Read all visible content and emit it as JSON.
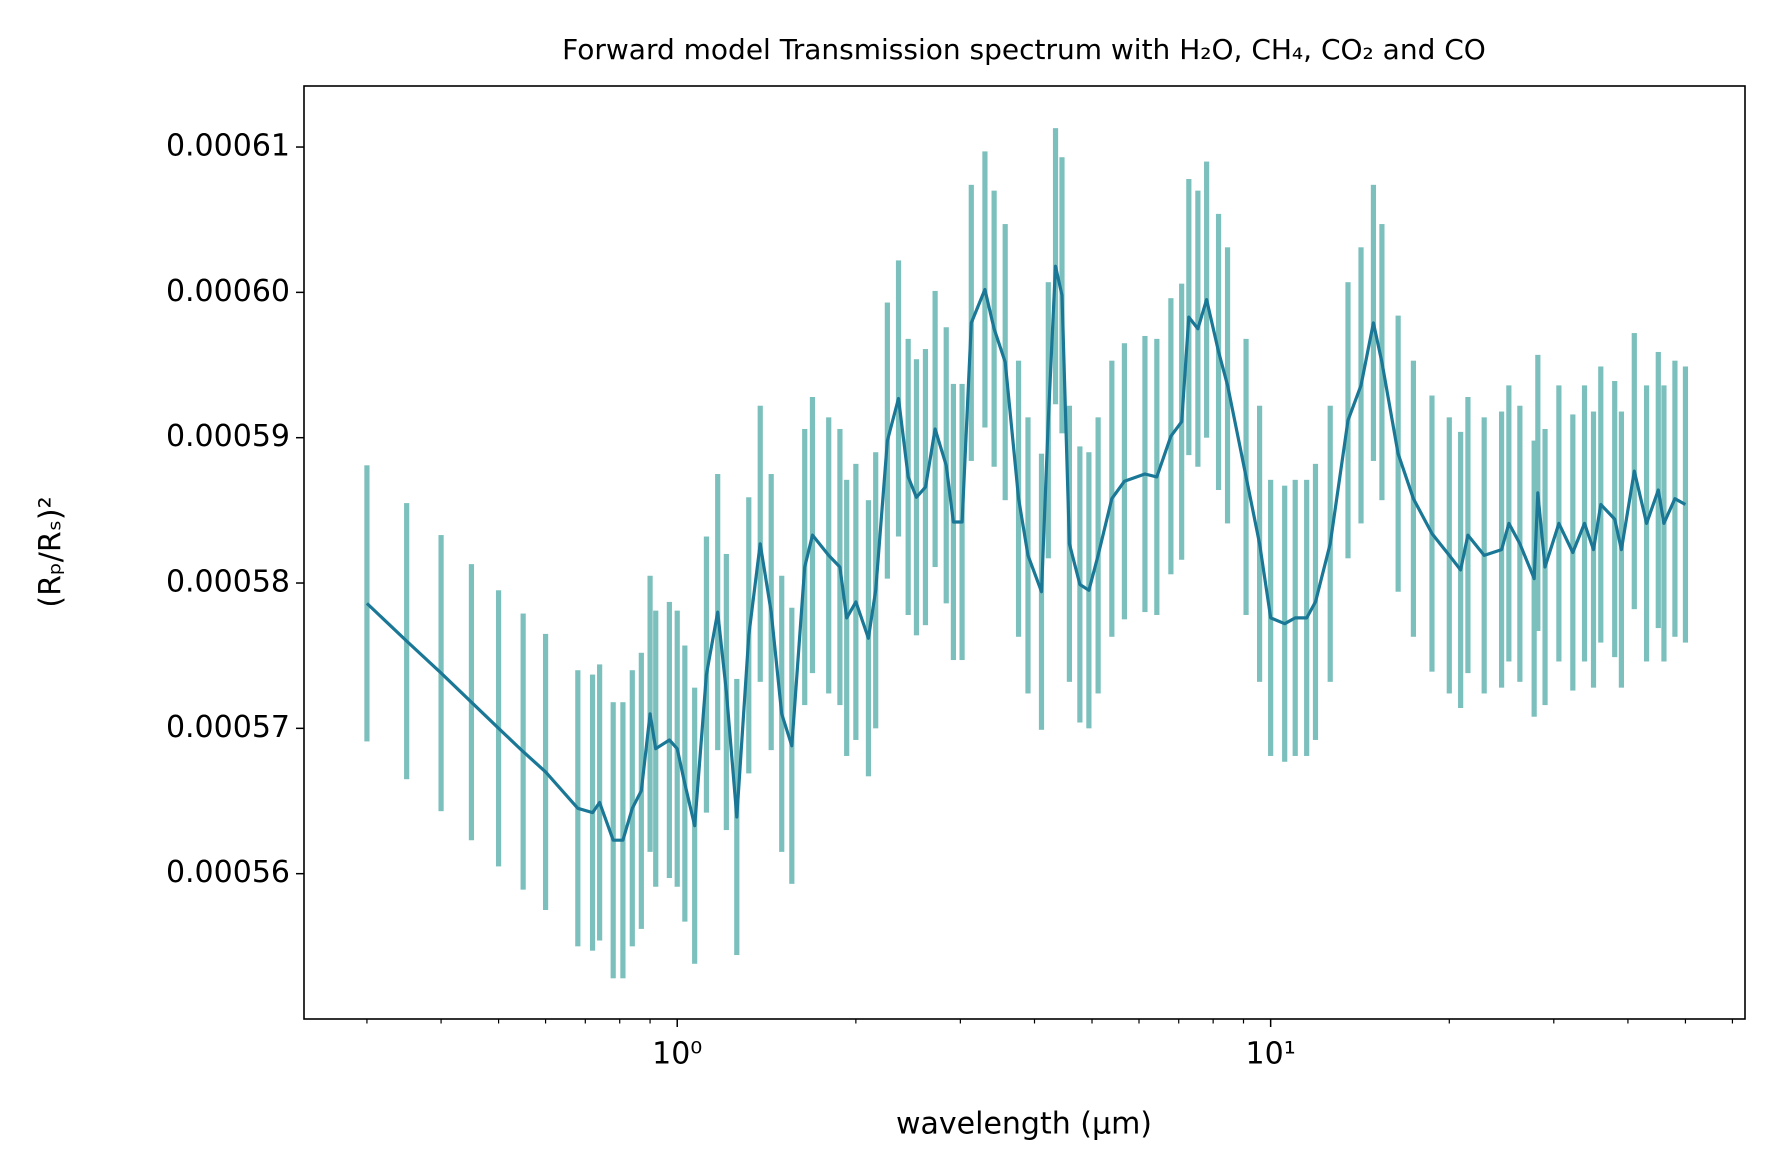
{
  "chart_data": {
    "type": "errorbar_line",
    "title": "Forward model Transmission spectrum with H₂O, CH₄, CO₂ and CO",
    "x_label": "wavelength (µm)",
    "y_label": "(Rₚ/Rₛ)²",
    "log_x": true,
    "xlim": [
      0.235,
      63
    ],
    "ylim": [
      0.00055,
      0.0006142
    ],
    "xticks": [
      {
        "value": 1,
        "label": "10⁰"
      },
      {
        "value": 10,
        "label": "10¹"
      }
    ],
    "xminorticks": [
      0.3,
      0.4,
      0.5,
      0.6,
      0.7,
      0.8,
      0.9,
      2,
      3,
      4,
      5,
      6,
      7,
      8,
      9,
      20,
      30,
      40,
      50,
      60
    ],
    "yticks": [
      0.00056,
      0.00057,
      0.00058,
      0.00059,
      {
        "value": 0.0006,
        "label": "0.00060"
      },
      0.00061
    ],
    "series": [
      {
        "color": "#1a7896",
        "error_color": "#7cc0bd",
        "error": 9.5e-06,
        "x": [
          0.3,
          0.35,
          0.4,
          0.45,
          0.5,
          0.55,
          0.6,
          0.68,
          0.72,
          0.74,
          0.78,
          0.81,
          0.84,
          0.87,
          0.9,
          0.92,
          0.97,
          1.0,
          1.03,
          1.07,
          1.12,
          1.17,
          1.21,
          1.26,
          1.32,
          1.38,
          1.44,
          1.5,
          1.56,
          1.64,
          1.69,
          1.8,
          1.88,
          1.93,
          2.0,
          2.1,
          2.16,
          2.26,
          2.36,
          2.45,
          2.53,
          2.62,
          2.72,
          2.84,
          2.92,
          3.02,
          3.13,
          3.3,
          3.42,
          3.57,
          3.76,
          3.9,
          4.11,
          4.22,
          4.34,
          4.45,
          4.58,
          4.77,
          4.94,
          5.12,
          5.4,
          5.67,
          6.14,
          6.43,
          6.79,
          7.08,
          7.28,
          7.54,
          7.8,
          8.17,
          8.46,
          9.09,
          9.58,
          10.0,
          10.56,
          11.0,
          11.5,
          11.9,
          12.6,
          13.5,
          14.2,
          14.9,
          15.4,
          16.4,
          17.4,
          18.7,
          20.0,
          20.9,
          21.5,
          22.9,
          24.5,
          25.2,
          26.3,
          27.8,
          28.2,
          29.0,
          30.6,
          32.3,
          33.8,
          35.0,
          36.0,
          38.0,
          39.0,
          41.0,
          43.0,
          45.0,
          46.0,
          48.0,
          50.0
        ],
        "values": [
          0.0005786,
          0.000576,
          0.0005738,
          0.0005718,
          0.00057,
          0.0005684,
          0.000567,
          0.0005645,
          0.0005642,
          0.0005649,
          0.0005623,
          0.0005623,
          0.0005645,
          0.0005657,
          0.000571,
          0.0005686,
          0.0005692,
          0.0005686,
          0.0005662,
          0.0005633,
          0.0005737,
          0.000578,
          0.0005725,
          0.0005639,
          0.0005764,
          0.0005827,
          0.000578,
          0.000571,
          0.0005688,
          0.0005811,
          0.0005833,
          0.0005819,
          0.0005811,
          0.0005776,
          0.0005787,
          0.0005762,
          0.0005795,
          0.0005898,
          0.0005927,
          0.0005873,
          0.0005859,
          0.0005866,
          0.0005906,
          0.0005881,
          0.0005842,
          0.0005842,
          0.0005979,
          0.0006002,
          0.0005975,
          0.0005952,
          0.0005858,
          0.0005819,
          0.0005794,
          0.0005912,
          0.0006018,
          0.0005998,
          0.0005827,
          0.0005799,
          0.0005795,
          0.0005819,
          0.0005858,
          0.000587,
          0.0005875,
          0.0005873,
          0.0005901,
          0.0005911,
          0.0005983,
          0.0005975,
          0.0005995,
          0.0005959,
          0.0005936,
          0.0005873,
          0.0005827,
          0.0005776,
          0.0005772,
          0.0005776,
          0.0005776,
          0.0005787,
          0.0005827,
          0.0005912,
          0.0005936,
          0.0005979,
          0.0005952,
          0.0005889,
          0.0005858,
          0.0005834,
          0.0005819,
          0.0005809,
          0.0005833,
          0.0005819,
          0.0005823,
          0.0005841,
          0.0005827,
          0.0005803,
          0.0005862,
          0.0005811,
          0.0005841,
          0.0005821,
          0.0005841,
          0.0005823,
          0.0005854,
          0.0005844,
          0.0005823,
          0.0005877,
          0.0005841,
          0.0005864,
          0.0005841,
          0.0005858,
          0.0005854
        ]
      }
    ]
  }
}
